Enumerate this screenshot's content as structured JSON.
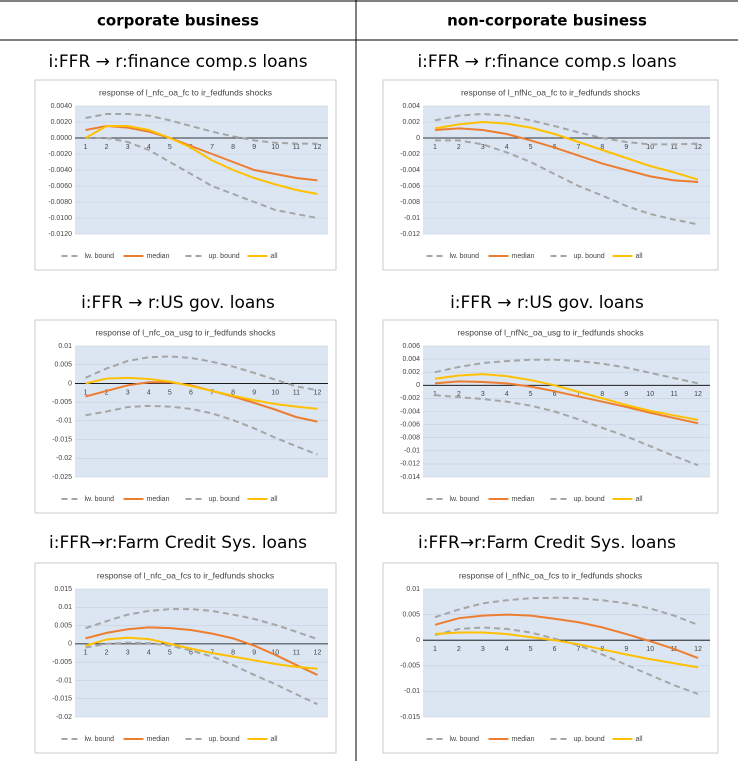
{
  "table": {
    "columns": [
      "corporate business",
      "non-corporate business"
    ],
    "rows": [
      [
        "i:FFR → r:finance comp.s loans",
        "i:FFR → r:finance comp.s loans"
      ],
      [
        "i:FFR → r:US gov. loans",
        "i:FFR → r:US gov. loans"
      ],
      [
        "i:FFR→r:Farm Credit Sys. loans",
        "i:FFR→r:Farm Credit Sys. loans"
      ]
    ]
  },
  "chart_data": [
    {
      "type": "line",
      "title": "response of l_nfc_oa_fc to ir_fedfunds shocks",
      "categories": [
        "1",
        "2",
        "3",
        "4",
        "5",
        "6",
        "7",
        "8",
        "9",
        "10",
        "11",
        "12"
      ],
      "ylim": [
        -0.012,
        0.004
      ],
      "yticks": [
        {
          "value": -0.012,
          "label": "-0.0120"
        },
        {
          "value": -0.01,
          "label": "-0.0100"
        },
        {
          "value": -0.008,
          "label": "-0.0080"
        },
        {
          "value": -0.006,
          "label": "-0.0060"
        },
        {
          "value": -0.004,
          "label": "-0.0040"
        },
        {
          "value": -0.002,
          "label": "-0.0020"
        },
        {
          "value": 0,
          "label": "0.0000"
        },
        {
          "value": 0.002,
          "label": "0.0020"
        },
        {
          "value": 0.004,
          "label": "0.0040"
        }
      ],
      "grid": true,
      "legend": "bottom",
      "series": [
        {
          "name": "lw. bound",
          "color": "#a5a5a5",
          "dashed": true,
          "values": [
            0,
            0,
            -0.0005,
            -0.0015,
            -0.003,
            -0.0045,
            -0.006,
            -0.007,
            -0.008,
            -0.009,
            -0.0095,
            -0.01
          ]
        },
        {
          "name": "median",
          "color": "#ed7d31",
          "dashed": false,
          "values": [
            0.001,
            0.0015,
            0.0013,
            0.0008,
            0,
            -0.001,
            -0.002,
            -0.003,
            -0.004,
            -0.0045,
            -0.005,
            -0.0053
          ]
        },
        {
          "name": "up. bound",
          "color": "#a5a5a5",
          "dashed": true,
          "values": [
            0.0025,
            0.003,
            0.003,
            0.0028,
            0.0022,
            0.0015,
            0.0008,
            0.0002,
            -0.0003,
            -0.0006,
            -0.0007,
            -0.0007
          ]
        },
        {
          "name": "all",
          "color": "#ffc000",
          "dashed": false,
          "values": [
            0,
            0.0015,
            0.0015,
            0.001,
            0,
            -0.0012,
            -0.0028,
            -0.004,
            -0.005,
            -0.0058,
            -0.0065,
            -0.007
          ]
        }
      ]
    },
    {
      "type": "line",
      "title": "response of l_nfNc_oa_fc to ir_fedfunds shocks",
      "categories": [
        "1",
        "2",
        "3",
        "4",
        "5",
        "6",
        "7",
        "8",
        "9",
        "10",
        "11",
        "12"
      ],
      "ylim": [
        -0.012,
        0.004
      ],
      "yticks": [
        -0.012,
        -0.01,
        -0.008,
        -0.006,
        -0.004,
        -0.002,
        0,
        0.002,
        0.004
      ],
      "grid": true,
      "legend": "bottom",
      "series": [
        {
          "name": "lw. bound",
          "color": "#a5a5a5",
          "dashed": true,
          "values": [
            -0.0003,
            -0.0003,
            -0.0008,
            -0.0018,
            -0.003,
            -0.0045,
            -0.006,
            -0.0072,
            -0.0085,
            -0.0095,
            -0.0102,
            -0.0108
          ]
        },
        {
          "name": "median",
          "color": "#ed7d31",
          "dashed": false,
          "values": [
            0.001,
            0.0012,
            0.001,
            0.0005,
            -0.0003,
            -0.0012,
            -0.0022,
            -0.0032,
            -0.004,
            -0.0048,
            -0.0053,
            -0.0055
          ]
        },
        {
          "name": "up. bound",
          "color": "#a5a5a5",
          "dashed": true,
          "values": [
            0.0022,
            0.0028,
            0.003,
            0.0028,
            0.0022,
            0.0015,
            0.0007,
            0,
            -0.0005,
            -0.0008,
            -0.0008,
            -0.0007
          ]
        },
        {
          "name": "all",
          "color": "#ffc000",
          "dashed": false,
          "values": [
            0.0012,
            0.0017,
            0.002,
            0.0018,
            0.0013,
            0.0005,
            -0.0005,
            -0.0015,
            -0.0025,
            -0.0035,
            -0.0043,
            -0.0052
          ]
        }
      ]
    },
    {
      "type": "line",
      "title": "response of l_nfc_oa_usg to ir_fedfunds shocks",
      "categories": [
        "1",
        "2",
        "3",
        "4",
        "5",
        "6",
        "7",
        "8",
        "9",
        "10",
        "11",
        "12"
      ],
      "ylim": [
        -0.025,
        0.01
      ],
      "yticks": [
        -0.025,
        -0.02,
        -0.015,
        -0.01,
        -0.005,
        0,
        0.005,
        0.01
      ],
      "grid": true,
      "legend": "bottom",
      "series": [
        {
          "name": "lw. bound",
          "color": "#a5a5a5",
          "dashed": true,
          "values": [
            -0.0085,
            -0.0075,
            -0.0063,
            -0.006,
            -0.0062,
            -0.0068,
            -0.008,
            -0.0098,
            -0.012,
            -0.0145,
            -0.0168,
            -0.019
          ]
        },
        {
          "name": "median",
          "color": "#ed7d31",
          "dashed": false,
          "values": [
            -0.0035,
            -0.002,
            -0.0005,
            0.0003,
            0.0003,
            -0.0005,
            -0.002,
            -0.0035,
            -0.0052,
            -0.007,
            -0.009,
            -0.0102
          ]
        },
        {
          "name": "up. bound",
          "color": "#a5a5a5",
          "dashed": true,
          "values": [
            0.0015,
            0.004,
            0.006,
            0.007,
            0.0072,
            0.0068,
            0.0058,
            0.0045,
            0.0028,
            0.001,
            -0.0008,
            -0.0018
          ]
        },
        {
          "name": "all",
          "color": "#ffc000",
          "dashed": false,
          "values": [
            0,
            0.0013,
            0.0015,
            0.0012,
            0.0005,
            -0.0007,
            -0.002,
            -0.0033,
            -0.0045,
            -0.0055,
            -0.0062,
            -0.0068
          ]
        }
      ]
    },
    {
      "type": "line",
      "title": "response of l_nfNc_oa_usg to ir_fedfunds shocks",
      "categories": [
        "1",
        "2",
        "3",
        "4",
        "5",
        "6",
        "7",
        "8",
        "9",
        "10",
        "11",
        "12"
      ],
      "ylim": [
        -0.014,
        0.006
      ],
      "yticks": [
        -0.014,
        -0.012,
        -0.01,
        -0.008,
        -0.006,
        -0.004,
        -0.002,
        0,
        0.002,
        0.004,
        0.006
      ],
      "grid": true,
      "legend": "bottom",
      "series": [
        {
          "name": "lw. bound",
          "color": "#a5a5a5",
          "dashed": true,
          "values": [
            -0.0015,
            -0.0018,
            -0.0021,
            -0.0025,
            -0.0031,
            -0.004,
            -0.0052,
            -0.0065,
            -0.0078,
            -0.0093,
            -0.0108,
            -0.0122
          ]
        },
        {
          "name": "median",
          "color": "#ed7d31",
          "dashed": false,
          "values": [
            0.0003,
            0.0006,
            0.0005,
            0.0003,
            -0.0002,
            -0.0009,
            -0.0017,
            -0.0025,
            -0.0033,
            -0.0042,
            -0.005,
            -0.0058
          ]
        },
        {
          "name": "up. bound",
          "color": "#a5a5a5",
          "dashed": true,
          "values": [
            0.002,
            0.0028,
            0.0034,
            0.0037,
            0.0039,
            0.0039,
            0.0037,
            0.0033,
            0.0027,
            0.0019,
            0.0011,
            0.0003
          ]
        },
        {
          "name": "all",
          "color": "#ffc000",
          "dashed": false,
          "values": [
            0.001,
            0.0015,
            0.0017,
            0.0014,
            0.0008,
            0,
            -0.001,
            -0.002,
            -0.003,
            -0.0039,
            -0.0046,
            -0.0053
          ]
        }
      ]
    },
    {
      "type": "line",
      "title": "response of l_nfc_oa_fcs to ir_fedfunds shocks",
      "categories": [
        "1",
        "2",
        "3",
        "4",
        "5",
        "6",
        "7",
        "8",
        "9",
        "10",
        "11",
        "12"
      ],
      "ylim": [
        -0.02,
        0.015
      ],
      "yticks": [
        -0.02,
        -0.015,
        -0.01,
        -0.005,
        0,
        0.005,
        0.01,
        0.015
      ],
      "grid": true,
      "legend": "bottom",
      "series": [
        {
          "name": "lw. bound",
          "color": "#a5a5a5",
          "dashed": true,
          "values": [
            -0.001,
            0,
            0.0003,
            0.0002,
            -0.0005,
            -0.0018,
            -0.0035,
            -0.0058,
            -0.0085,
            -0.011,
            -0.0138,
            -0.0165
          ]
        },
        {
          "name": "median",
          "color": "#ed7d31",
          "dashed": false,
          "values": [
            0.0015,
            0.003,
            0.004,
            0.0045,
            0.0043,
            0.0038,
            0.0028,
            0.0015,
            -0.0005,
            -0.003,
            -0.0058,
            -0.0085
          ]
        },
        {
          "name": "up. bound",
          "color": "#a5a5a5",
          "dashed": true,
          "values": [
            0.0043,
            0.0062,
            0.008,
            0.009,
            0.0095,
            0.0095,
            0.009,
            0.008,
            0.0068,
            0.0052,
            0.0033,
            0.0013
          ]
        },
        {
          "name": "all",
          "color": "#ffc000",
          "dashed": false,
          "values": [
            -0.0005,
            0.0012,
            0.0017,
            0.0013,
            0,
            -0.0013,
            -0.0025,
            -0.0035,
            -0.0045,
            -0.0055,
            -0.0063,
            -0.0068
          ]
        }
      ]
    },
    {
      "type": "line",
      "title": "response of l_nfNc_oa_fcs to ir_fedfunds shocks",
      "categories": [
        "1",
        "2",
        "3",
        "4",
        "5",
        "6",
        "7",
        "8",
        "9",
        "10",
        "11",
        "12"
      ],
      "ylim": [
        -0.015,
        0.01
      ],
      "yticks": [
        -0.015,
        -0.01,
        -0.005,
        0,
        0.005,
        0.01
      ],
      "grid": true,
      "legend": "bottom",
      "series": [
        {
          "name": "lw. bound",
          "color": "#a5a5a5",
          "dashed": true,
          "values": [
            0.001,
            0.0022,
            0.0025,
            0.0022,
            0.0015,
            0.0003,
            -0.001,
            -0.0028,
            -0.0048,
            -0.0068,
            -0.0088,
            -0.0105
          ]
        },
        {
          "name": "median",
          "color": "#ed7d31",
          "dashed": false,
          "values": [
            0.003,
            0.0043,
            0.0048,
            0.005,
            0.0048,
            0.0042,
            0.0035,
            0.0025,
            0.0012,
            -0.0002,
            -0.0017,
            -0.0035
          ]
        },
        {
          "name": "up. bound",
          "color": "#a5a5a5",
          "dashed": true,
          "values": [
            0.0045,
            0.006,
            0.0072,
            0.0078,
            0.0082,
            0.0083,
            0.0082,
            0.0078,
            0.0072,
            0.0062,
            0.0048,
            0.003
          ]
        },
        {
          "name": "all",
          "color": "#ffc000",
          "dashed": false,
          "values": [
            0.0012,
            0.0015,
            0.0015,
            0.0012,
            0.0006,
            0,
            -0.0008,
            -0.0018,
            -0.0028,
            -0.0037,
            -0.0045,
            -0.0053
          ]
        }
      ]
    }
  ]
}
